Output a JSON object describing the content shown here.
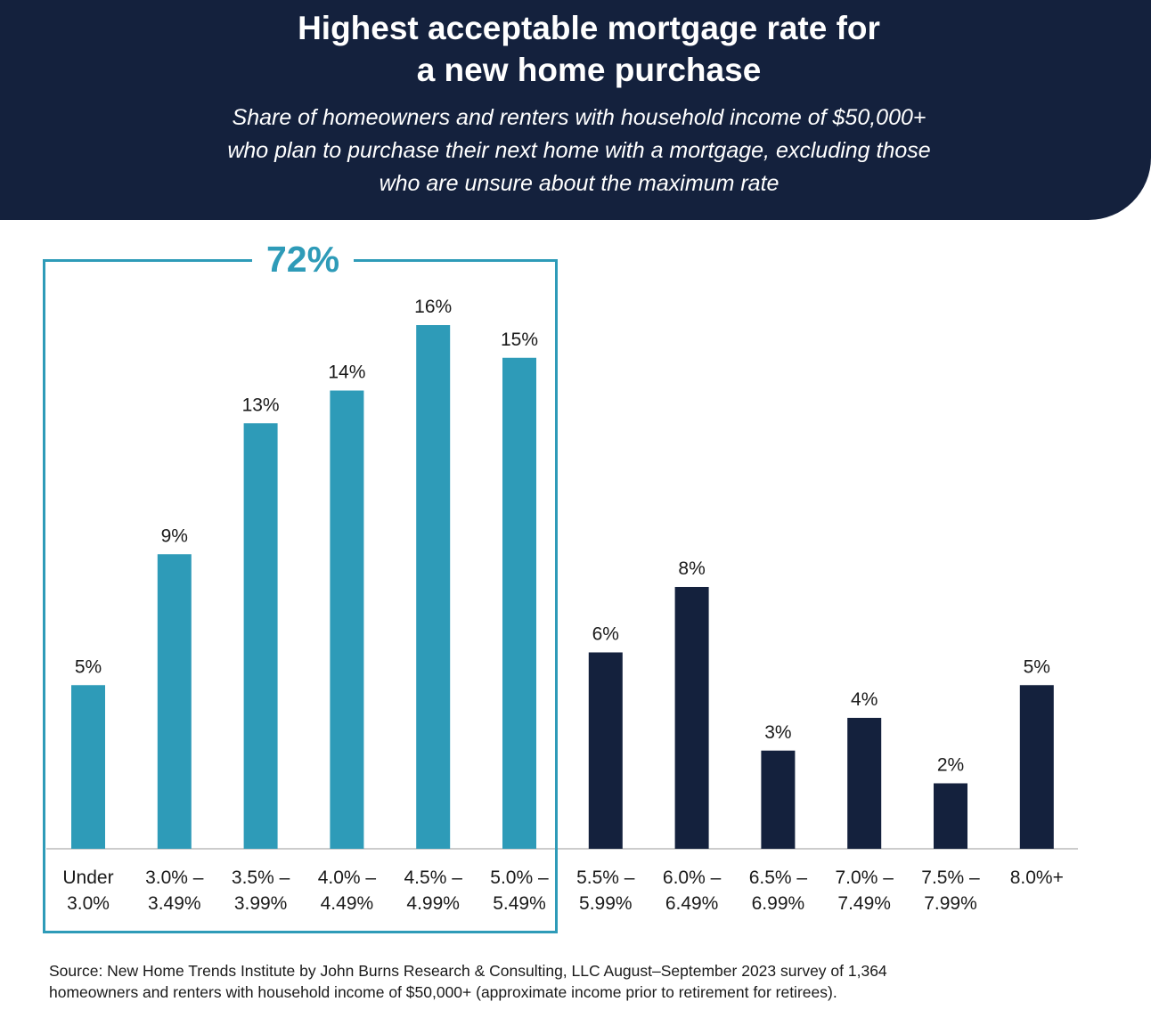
{
  "title_lines": [
    "Highest acceptable mortgage rate for",
    "a new home purchase"
  ],
  "subtitle_lines": [
    "Share of homeowners and renters with household income of $50,000+",
    "who plan to purchase their next home with a mortgage, excluding those",
    "who are unsure about the maximum rate"
  ],
  "highlight": {
    "total_label": "72%",
    "color": "#2e9bb8"
  },
  "colors": {
    "highlight_bar": "#2e9bb8",
    "other_bar": "#14213d",
    "header": "#14213d",
    "axis": "#cccccc"
  },
  "chart_data": {
    "type": "bar",
    "categories": [
      [
        "Under",
        "3.0%"
      ],
      [
        "3.0% –",
        "3.49%"
      ],
      [
        "3.5% –",
        "3.99%"
      ],
      [
        "4.0% –",
        "4.49%"
      ],
      [
        "4.5% –",
        "4.99%"
      ],
      [
        "5.0% –",
        "5.49%"
      ],
      [
        "5.5% –",
        "5.99%"
      ],
      [
        "6.0% –",
        "6.49%"
      ],
      [
        "6.5% –",
        "6.99%"
      ],
      [
        "7.0% –",
        "7.49%"
      ],
      [
        "7.5% –",
        "7.99%"
      ],
      [
        "8.0%+"
      ]
    ],
    "values": [
      5,
      9,
      13,
      14,
      16,
      15,
      6,
      8,
      3,
      4,
      2,
      5
    ],
    "value_labels": [
      "5%",
      "9%",
      "13%",
      "14%",
      "16%",
      "15%",
      "6%",
      "8%",
      "3%",
      "4%",
      "2%",
      "5%"
    ],
    "highlighted": [
      true,
      true,
      true,
      true,
      true,
      true,
      false,
      false,
      false,
      false,
      false,
      false
    ],
    "ylim": [
      0,
      16
    ],
    "grid": false,
    "legend": "none"
  },
  "source_lines": [
    "Source: New Home Trends Institute by John Burns Research & Consulting, LLC August–September 2023 survey of 1,364",
    "homeowners and renters with household income of $50,000+ (approximate income prior to retirement for retirees)."
  ]
}
